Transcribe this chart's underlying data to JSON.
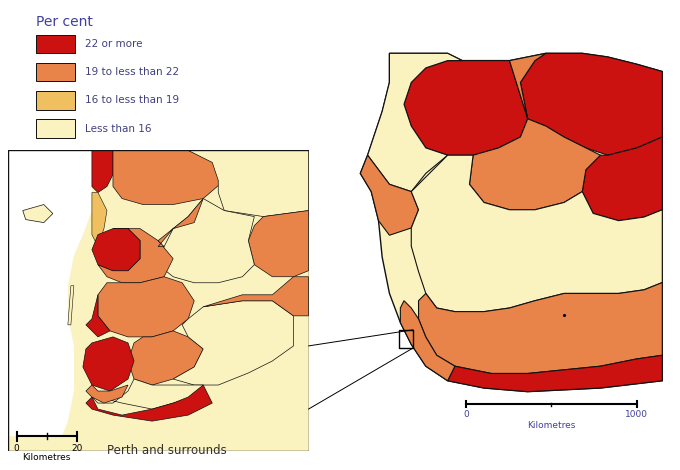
{
  "legend_title": "Per cent",
  "legend_items": [
    {
      "label": "22 or more",
      "color": "#cc1111"
    },
    {
      "label": "19 to less than 22",
      "color": "#e8844a"
    },
    {
      "label": "16 to less than 19",
      "color": "#f0c060"
    },
    {
      "label": "Less than 16",
      "color": "#faf3c0"
    }
  ],
  "legend_title_color": "#4040a0",
  "legend_label_color": "#404080",
  "inset_label": "Perth and surrounds",
  "background_color": "#ffffff",
  "border_color": "#111111",
  "fig_width": 6.8,
  "fig_height": 4.7,
  "dpi": 100
}
